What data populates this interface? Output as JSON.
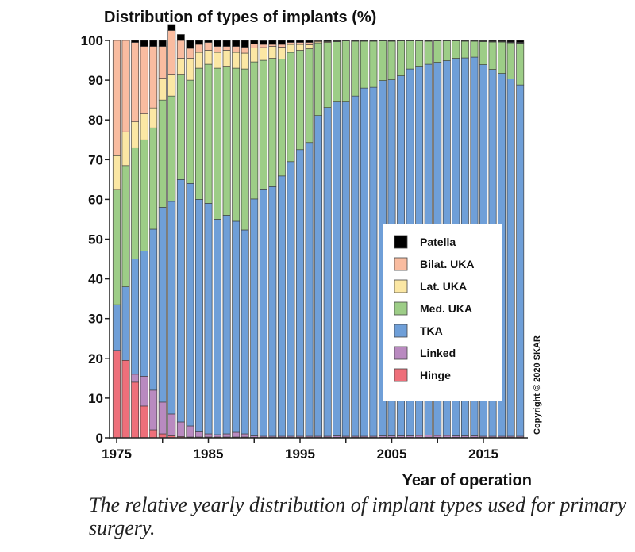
{
  "chart_data": {
    "type": "bar",
    "stacked": true,
    "title": "Distribution of types of implants (%)",
    "xlabel": "Year of operation",
    "ylabel": "",
    "ylim": [
      0,
      100
    ],
    "yticks": [
      0,
      10,
      20,
      30,
      40,
      50,
      60,
      70,
      80,
      90,
      100
    ],
    "xticks": [
      1975,
      1985,
      1995,
      2005,
      2015
    ],
    "legend_position": "center-right",
    "copyright": "Copyright © 2020 SKAR",
    "categories": [
      1975,
      1976,
      1977,
      1978,
      1979,
      1980,
      1981,
      1982,
      1983,
      1984,
      1985,
      1986,
      1987,
      1988,
      1989,
      1990,
      1991,
      1992,
      1993,
      1994,
      1995,
      1996,
      1997,
      1998,
      1999,
      2000,
      2001,
      2002,
      2003,
      2004,
      2005,
      2006,
      2007,
      2008,
      2009,
      2010,
      2011,
      2012,
      2013,
      2014,
      2015,
      2016,
      2017,
      2018,
      2019
    ],
    "legend": [
      {
        "name": "Patella",
        "color": "#000000"
      },
      {
        "name": "Bilat. UKA",
        "color": "#f9bca0"
      },
      {
        "name": "Lat. UKA",
        "color": "#fbe7a4"
      },
      {
        "name": "Med. UKA",
        "color": "#9dcd87"
      },
      {
        "name": "TKA",
        "color": "#6f9fd8"
      },
      {
        "name": "Linked",
        "color": "#b98ac0"
      },
      {
        "name": "Hinge",
        "color": "#ee6f7a"
      }
    ],
    "series": [
      {
        "name": "Hinge",
        "color": "#ee6f7a",
        "values": [
          22,
          19.5,
          14,
          8,
          2,
          1,
          0.5,
          0.3,
          0.2,
          0.2,
          0.2,
          0.2,
          0.2,
          0.2,
          0.2,
          0.1,
          0.1,
          0.1,
          0.1,
          0.1,
          0.1,
          0.1,
          0.1,
          0.1,
          0.1,
          0.1,
          0.1,
          0.1,
          0.1,
          0.1,
          0.1,
          0.1,
          0.1,
          0.1,
          0.1,
          0.1,
          0.1,
          0.1,
          0.1,
          0.1,
          0.1,
          0.1,
          0.1,
          0.1,
          0.1
        ]
      },
      {
        "name": "Linked",
        "color": "#b98ac0",
        "values": [
          0,
          0,
          2,
          7.5,
          10,
          8,
          5.5,
          3.7,
          2.8,
          1.3,
          0.8,
          0.6,
          0.8,
          1.2,
          0.8,
          0.4,
          0.3,
          0.3,
          0.3,
          0.3,
          0.3,
          0.3,
          0.3,
          0.3,
          0.4,
          0.3,
          0.3,
          0.3,
          0.3,
          0.4,
          0.4,
          0.4,
          0.4,
          0.5,
          0.6,
          0.5,
          0.5,
          0.4,
          0.4,
          0.4,
          0.3,
          0.3,
          0.3,
          0.3,
          0.3
        ]
      },
      {
        "name": "TKA",
        "color": "#6f9fd8",
        "values": [
          11.5,
          18.5,
          29,
          31.5,
          40.5,
          49,
          53.5,
          61,
          61,
          58.5,
          58,
          54.2,
          55,
          53.1,
          51.3,
          59.6,
          62.2,
          62.8,
          65.5,
          69.1,
          72.1,
          73.9,
          80.7,
          82.7,
          84.2,
          84.3,
          85.6,
          87.6,
          87.8,
          89.4,
          89.6,
          90.6,
          92.3,
          92.9,
          93.3,
          93.9,
          94.3,
          95,
          95.1,
          95.3,
          93.5,
          92.3,
          91.3,
          89.9,
          88.4
        ]
      },
      {
        "name": "Med. UKA",
        "color": "#9dcd87",
        "values": [
          29,
          30.5,
          28,
          28,
          25.5,
          27,
          26.5,
          26.5,
          26,
          33,
          35,
          38,
          37.5,
          38.5,
          40.5,
          34.5,
          32.4,
          32.3,
          29.4,
          27.5,
          25,
          23.6,
          18.3,
          16.4,
          15,
          15.2,
          13.8,
          11.8,
          11.6,
          10.0,
          9.7,
          8.8,
          7.1,
          6.4,
          5.8,
          5.4,
          5.0,
          4.4,
          4.2,
          4.0,
          5.8,
          6.9,
          7.9,
          9.1,
          10.5
        ]
      },
      {
        "name": "Lat. UKA",
        "color": "#fbe7a4",
        "values": [
          8.5,
          8.5,
          6.5,
          6.5,
          5,
          5.5,
          5.5,
          4,
          5.5,
          4,
          3.5,
          4,
          4,
          4,
          4,
          3.5,
          3.2,
          3,
          3,
          2,
          1.5,
          1,
          0.3,
          0.2,
          0.1,
          0.1,
          0.1,
          0.1,
          0.1,
          0.1,
          0.1,
          0.1,
          0.1,
          0.1,
          0.1,
          0.1,
          0.1,
          0.1,
          0.1,
          0.1,
          0.1,
          0.1,
          0.1,
          0.1,
          0.1
        ]
      },
      {
        "name": "Bilat. UKA",
        "color": "#f9bca0",
        "values": [
          29,
          23,
          20,
          17,
          15.5,
          8,
          11,
          4.5,
          2.5,
          2,
          2,
          1.5,
          1,
          1.5,
          1.5,
          1,
          0.8,
          0.5,
          0.7,
          0.5,
          0.5,
          0.6,
          0.2,
          0.1,
          0.1,
          0.1,
          0.1,
          0.1,
          0.1,
          0.1,
          0.1,
          0.1,
          0.1,
          0.1,
          0.1,
          0.1,
          0.1,
          0.1,
          0.1,
          0.1,
          0.1,
          0.1,
          0.1,
          0.1,
          0.1
        ]
      },
      {
        "name": "Patella",
        "color": "#000000",
        "values": [
          0,
          0,
          0.5,
          1.5,
          1.5,
          1.5,
          1.5,
          1.5,
          2,
          1,
          0.5,
          1.5,
          1.5,
          1.5,
          1.7,
          0.9,
          0.9,
          1,
          1,
          0.5,
          0.5,
          0.5,
          0.1,
          0.2,
          0.1,
          0,
          0,
          0,
          0,
          0,
          0,
          0,
          0,
          0,
          0,
          0,
          0,
          0,
          0,
          0,
          0.1,
          0.2,
          0.2,
          0.4,
          0.5
        ]
      }
    ]
  },
  "caption": "The relative yearly distribution of implant types used for primary surgery."
}
